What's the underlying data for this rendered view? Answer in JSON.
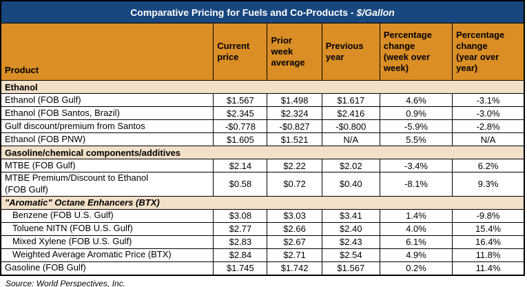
{
  "title": {
    "prefix": "Comparative Pricing for Fuels and Co-Products -",
    "unit": "$/Gallon"
  },
  "header": {
    "columns": [
      "Product",
      "Current\nprice",
      "Prior\nweek\naverage",
      "Previous\nyear",
      "Percentage\nchange\n(week over\nweek)",
      "Percentage\nchange\n(year over\nyear)"
    ]
  },
  "rows": [
    {
      "type": "section",
      "label": "Ethanol",
      "italic": false
    },
    {
      "type": "data",
      "product": "Ethanol (FOB Gulf)",
      "indent": false,
      "values": [
        "$1.567",
        "$1.498",
        "$1.617",
        "4.6%",
        "-3.1%"
      ]
    },
    {
      "type": "data",
      "product": "Ethanol (FOB Santos, Brazil)",
      "indent": false,
      "values": [
        "$2.345",
        "$2.324",
        "$2.416",
        "0.9%",
        "-3.0%"
      ]
    },
    {
      "type": "data",
      "product": "Gulf discount/premium from Santos",
      "indent": false,
      "values": [
        "-$0.778",
        "-$0.827",
        "-$0.800",
        "-5.9%",
        "-2.8%"
      ]
    },
    {
      "type": "data",
      "product": "Ethanol (FOB PNW)",
      "indent": false,
      "values": [
        "$1.605",
        "$1.521",
        "N/A",
        "5.5%",
        "N/A"
      ]
    },
    {
      "type": "section",
      "label": "Gasoline/chemical components/additives",
      "italic": false
    },
    {
      "type": "data",
      "product": "MTBE (FOB Gulf)",
      "indent": false,
      "values": [
        "$2.14",
        "$2.22",
        "$2.02",
        "-3.4%",
        "6.2%"
      ]
    },
    {
      "type": "data",
      "product": "MTBE Premium/Discount to Ethanol\n(FOB Gulf)",
      "indent": false,
      "values": [
        "$0.58",
        "$0.72",
        "$0.40",
        "-8.1%",
        "9.3%"
      ]
    },
    {
      "type": "section",
      "label": "\"Aromatic\" Octane Enhancers (BTX)",
      "italic": true
    },
    {
      "type": "data",
      "product": "Benzene (FOB U.S. Gulf)",
      "indent": true,
      "values": [
        "$3.08",
        "$3.03",
        "$3.41",
        "1.4%",
        "-9.8%"
      ]
    },
    {
      "type": "data",
      "product": "Toluene NITN (FOB U.S. Gulf)",
      "indent": true,
      "values": [
        "$2.77",
        "$2.66",
        "$2.40",
        "4.0%",
        "15.4%"
      ]
    },
    {
      "type": "data",
      "product": "Mixed Xylene (FOB U.S. Gulf)",
      "indent": true,
      "values": [
        "$2.83",
        "$2.67",
        "$2.43",
        "6.1%",
        "16.4%"
      ]
    },
    {
      "type": "data",
      "product": "Weighted Average Aromatic Price (BTX)",
      "indent": true,
      "values": [
        "$2.84",
        "$2.71",
        "$2.54",
        "4.9%",
        "11.8%"
      ]
    },
    {
      "type": "data",
      "product": "Gasoline (FOB Gulf)",
      "indent": false,
      "values": [
        "$1.745",
        "$1.742",
        "$1.567",
        "0.2%",
        "11.4%"
      ]
    }
  ],
  "footer": {
    "source": "Source: World Perspectives, Inc."
  },
  "colors": {
    "title_bg": "#17477E",
    "title_text": "#FFFFFF",
    "header_bg": "#DB8E26",
    "section_bg": "#F2E0C9",
    "row_bg": "#FFFFFF",
    "border": "#000000"
  }
}
